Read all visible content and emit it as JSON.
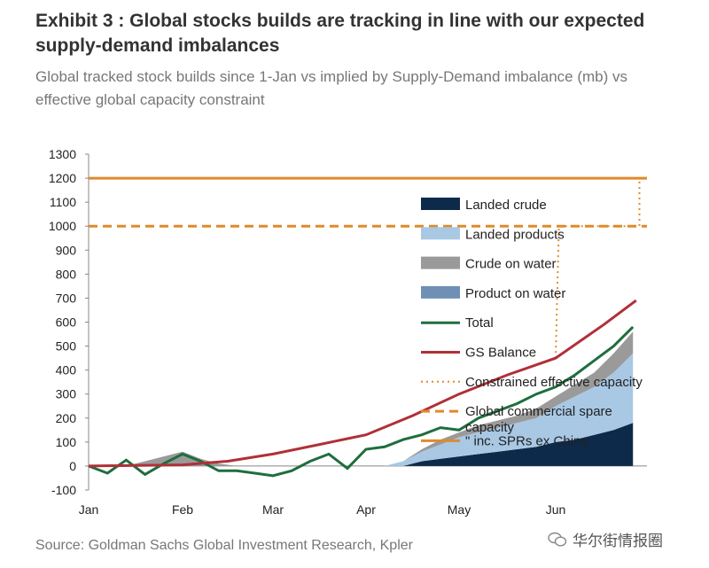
{
  "header": {
    "title": "Exhibit 3 : Global stocks builds are tracking in line with our expected supply-demand imbalances",
    "subtitle": "Global tracked stock builds since 1-Jan vs implied by Supply-Demand imbalance (mb) vs effective global capacity constraint"
  },
  "footer": {
    "source": "Source: Goldman Sachs Global Investment Research, Kpler",
    "watermark": "华尔街情报圈"
  },
  "chart_data": {
    "type": "area",
    "title": "Global tracked stock builds since 1-Jan vs implied by Supply-Demand imbalance (mb) vs effective global capacity constraint",
    "xlabel": "",
    "ylabel": "",
    "x_ticks": [
      "Jan",
      "Feb",
      "Mar",
      "Apr",
      "May",
      "Jun"
    ],
    "y_ticks": [
      "1300",
      "1200",
      "1100",
      "1000",
      "900",
      "800",
      "700",
      "600",
      "500",
      "400",
      "300",
      "200",
      "100",
      "0",
      "-100"
    ],
    "ylim": [
      -100,
      1300
    ],
    "xlim_days": [
      0,
      175
    ],
    "x_days": [
      0,
      6,
      12,
      18,
      24,
      30,
      36,
      42,
      48,
      54,
      60,
      66,
      72,
      78,
      84,
      90,
      96,
      102,
      108,
      114,
      120,
      126,
      132,
      138,
      144,
      150,
      156,
      162,
      168,
      174
    ],
    "stacked_series": [
      {
        "name": "Landed crude",
        "color": "#0d2a4a",
        "values": [
          0,
          0,
          0,
          0,
          0,
          0,
          0,
          0,
          0,
          0,
          0,
          0,
          0,
          0,
          0,
          0,
          0,
          0,
          20,
          30,
          40,
          50,
          60,
          70,
          80,
          100,
          110,
          130,
          150,
          180
        ]
      },
      {
        "name": "Landed products",
        "color": "#a8c8e4",
        "values": [
          0,
          0,
          0,
          0,
          0,
          0,
          0,
          0,
          0,
          0,
          0,
          0,
          0,
          0,
          0,
          0,
          0,
          20,
          40,
          60,
          80,
          90,
          100,
          110,
          120,
          150,
          180,
          200,
          240,
          290
        ]
      },
      {
        "name": "Crude on water",
        "color": "#9a9a9a",
        "values": [
          0,
          0,
          0,
          20,
          40,
          60,
          30,
          10,
          0,
          0,
          0,
          0,
          0,
          0,
          0,
          0,
          0,
          0,
          10,
          20,
          20,
          30,
          30,
          30,
          40,
          40,
          50,
          60,
          80,
          90
        ]
      },
      {
        "name": "Product on water",
        "color": "#6f8fb5",
        "values": [
          0,
          0,
          0,
          0,
          0,
          0,
          0,
          0,
          0,
          0,
          0,
          0,
          0,
          0,
          0,
          0,
          0,
          0,
          0,
          0,
          0,
          0,
          0,
          0,
          0,
          0,
          0,
          0,
          0,
          0
        ]
      }
    ],
    "total": {
      "name": "Total",
      "color": "#1e6e3e",
      "values": [
        0,
        -30,
        25,
        -35,
        10,
        50,
        20,
        -20,
        -20,
        -30,
        -40,
        -20,
        20,
        50,
        -10,
        70,
        80,
        110,
        130,
        160,
        150,
        200,
        230,
        260,
        300,
        330,
        380,
        440,
        500,
        580
      ]
    },
    "gs_balance": {
      "name": "GS Balance",
      "color": "#b03038",
      "x_days": [
        0,
        30,
        45,
        60,
        75,
        90,
        105,
        120,
        135,
        150,
        165,
        175
      ],
      "values": [
        0,
        5,
        20,
        50,
        90,
        130,
        210,
        300,
        380,
        450,
        590,
        690
      ]
    },
    "constrained_capacity": {
      "name": "Constrained effective capacity",
      "color": "#e08a2c",
      "x_days": [
        150,
        151,
        175,
        176,
        176
      ],
      "values": [
        450,
        1000,
        1000,
        1000,
        1200
      ]
    },
    "spare_capacity": {
      "name": "Global commercial spare capacity",
      "color": "#e08a2c",
      "value": 1000
    },
    "spr_capacity": {
      "name": "\" inc. SPRs ex China",
      "color": "#e08a2c",
      "value": 1200
    }
  }
}
